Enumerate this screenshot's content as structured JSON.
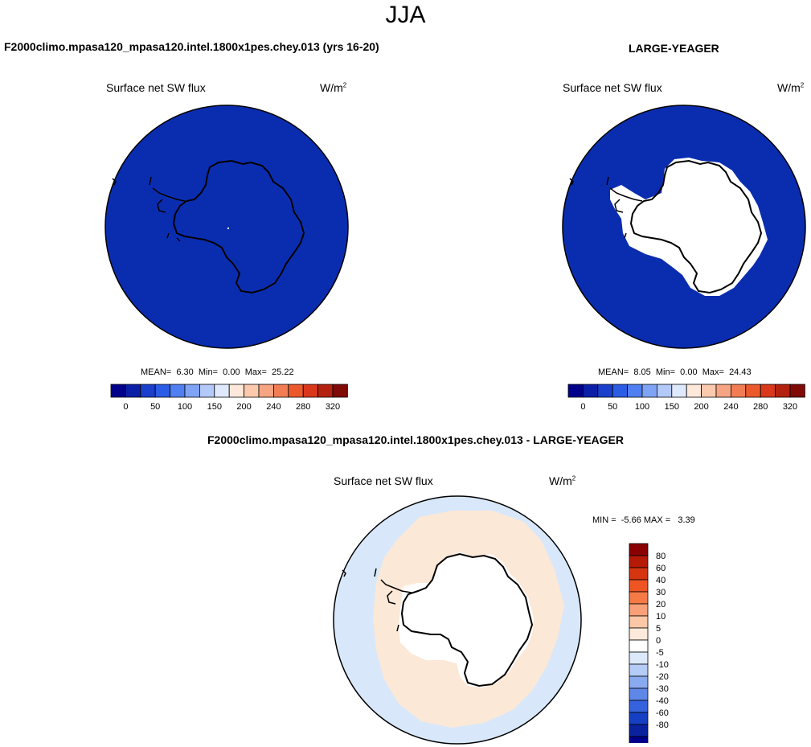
{
  "season": "JJA",
  "panels": [
    {
      "id": "model",
      "title": "F2000climo.mpasa120_mpasa120.intel.1800x1pes.chey.013 (yrs 16-20)",
      "variable": "Surface net SW flux",
      "units_base": "W/m",
      "units_exp": "2",
      "stats": {
        "mean_label": "MEAN=",
        "mean": "6.30",
        "min_label": "Min=",
        "min": "0.00",
        "max_label": "Max=",
        "max": "25.22"
      },
      "colorbar_labels": [
        "0",
        "50",
        "100",
        "150",
        "200",
        "240",
        "280",
        "320"
      ],
      "colorbar_colors": [
        "#00008b",
        "#0b1fa6",
        "#1a3fcc",
        "#2b5ce6",
        "#4f7ff0",
        "#7fa3f5",
        "#b3c9fa",
        "#dfe9fd",
        "#fde8da",
        "#fbcaad",
        "#f7a482",
        "#f27d55",
        "#ec5a2c",
        "#d9381a",
        "#b3220f",
        "#7f0a06"
      ]
    },
    {
      "id": "obs",
      "title": "LARGE-YEAGER",
      "variable": "Surface net SW flux",
      "units_base": "W/m",
      "units_exp": "2",
      "stats": {
        "mean_label": "MEAN=",
        "mean": "8.05",
        "min_label": "Min=",
        "min": "0.00",
        "max_label": "Max=",
        "max": "24.43"
      },
      "colorbar_labels": [
        "0",
        "50",
        "100",
        "150",
        "200",
        "240",
        "280",
        "320"
      ],
      "colorbar_colors": [
        "#00008b",
        "#0b1fa6",
        "#1a3fcc",
        "#2b5ce6",
        "#4f7ff0",
        "#7fa3f5",
        "#b3c9fa",
        "#dfe9fd",
        "#fde8da",
        "#fbcaad",
        "#f7a482",
        "#f27d55",
        "#ec5a2c",
        "#d9381a",
        "#b3220f",
        "#7f0a06"
      ]
    }
  ],
  "diff": {
    "title": "F2000climo.mpasa120_mpasa120.intel.1800x1pes.chey.013 - LARGE-YEAGER",
    "variable": "Surface net SW flux",
    "units_base": "W/m",
    "units_exp": "2",
    "minmax": "MIN =  -5.66 MAX =   3.39",
    "colorbar_labels": [
      "80",
      "60",
      "40",
      "30",
      "20",
      "10",
      "5",
      "0",
      "-5",
      "-10",
      "-20",
      "-30",
      "-40",
      "-60",
      "-80"
    ],
    "colorbar_colors": [
      "#8b0000",
      "#b41a06",
      "#d6350f",
      "#ee5522",
      "#f57a45",
      "#f9a078",
      "#fbc7a6",
      "#fdeadb",
      "#ffffff",
      "#dce9fb",
      "#b4ccf6",
      "#8aaaf0",
      "#5f87e8",
      "#3563dd",
      "#1540c4",
      "#0a229e",
      "#00008b"
    ]
  },
  "map_colors": {
    "model_ocean": "#0a2db0",
    "obs_ocean": "#0a2db0",
    "land_mask": "#ffffff",
    "diff_positive": "#fce8d7",
    "diff_negative": "#d8e8fa"
  }
}
